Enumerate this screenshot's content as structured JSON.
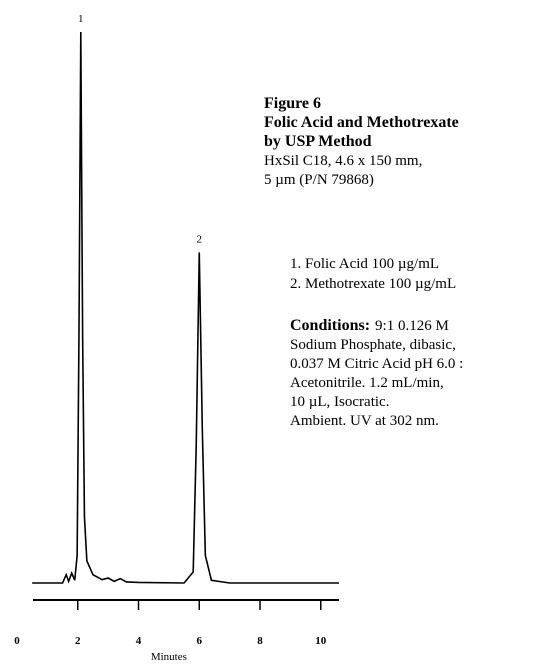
{
  "chart_data": {
    "type": "line",
    "xlabel": "Minutes",
    "xlim": [
      0,
      10.6
    ],
    "xticks": [
      0,
      2,
      4,
      6,
      8,
      10
    ],
    "ylim": [
      0,
      100
    ],
    "grid": false,
    "series": [
      {
        "name": null,
        "color": "#000000",
        "x": [
          0.5,
          1.5,
          1.62,
          1.7,
          1.8,
          1.9,
          1.98,
          2.04,
          2.1,
          2.16,
          2.22,
          2.3,
          2.5,
          2.8,
          3.0,
          3.2,
          3.4,
          3.6,
          4.0,
          5.5,
          5.8,
          5.9,
          6.0,
          6.1,
          6.2,
          6.4,
          7.0,
          10.6
        ],
        "values": [
          0,
          0,
          1.5,
          0.3,
          1.8,
          0.5,
          5,
          45,
          100,
          45,
          12,
          4,
          1.5,
          0.6,
          0.9,
          0.3,
          0.8,
          0.2,
          0.1,
          0,
          2,
          25,
          60,
          28,
          5,
          0.5,
          0,
          0
        ]
      }
    ],
    "annotations": [
      {
        "text": "1",
        "x": 2.1,
        "y": 100
      },
      {
        "text": "2",
        "x": 6.0,
        "y": 60
      }
    ],
    "figure": {
      "label": "Figure 6",
      "title_lines": [
        "Folic Acid and Methotrexate",
        "by USP Method"
      ],
      "column_lines": [
        "HxSil C18, 4.6 x 150 mm,",
        "5 µm (P/N 79868)"
      ]
    },
    "peaks": [
      "1.  Folic Acid  100 µg/mL",
      "2.  Methotrexate  100 µg/mL"
    ],
    "conditions": {
      "label": "Conditions:",
      "lines": [
        "9:1 0.126 M",
        "Sodium Phosphate, dibasic,",
        "0.037 M Citric Acid pH 6.0 :",
        "Acetonitrile. 1.2 mL/min,",
        "10 µL, Isocratic.",
        "Ambient. UV at 302 nm."
      ]
    }
  }
}
